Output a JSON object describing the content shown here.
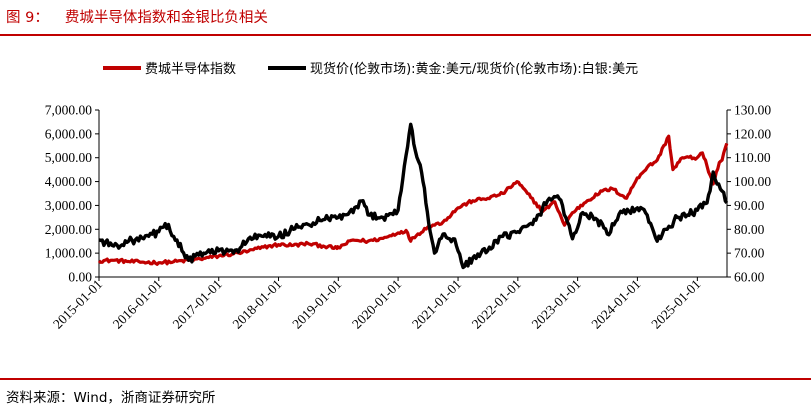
{
  "figure": {
    "label": "图 9：",
    "title": "费城半导体指数和金银比负相关",
    "source": "资料来源：Wind，浙商证券研究所"
  },
  "colors": {
    "accent_red": "#c00000",
    "series_red": "#c00000",
    "series_black": "#000000"
  },
  "chart_data": {
    "type": "line",
    "title": "费城半导体指数和金银比负相关",
    "legend_position": "top",
    "grid": false,
    "x_tick_labels": [
      "2015-01-01",
      "2016-01-01",
      "2017-01-01",
      "2018-01-01",
      "2019-01-01",
      "2020-01-01",
      "2021-01-01",
      "2022-01-01",
      "2023-01-01",
      "2024-01-01",
      "2025-01-01"
    ],
    "x_range": [
      "2015-01-01",
      "2025-07-01"
    ],
    "y_left": {
      "range": [
        0,
        7000
      ],
      "ticks": [
        "0.00",
        "1,000.00",
        "2,000.00",
        "3,000.00",
        "4,000.00",
        "5,000.00",
        "6,000.00",
        "7,000.00"
      ]
    },
    "y_right": {
      "range": [
        60,
        130
      ],
      "ticks": [
        "60.00",
        "70.00",
        "80.00",
        "90.00",
        "100.00",
        "110.00",
        "120.00",
        "130.00"
      ]
    },
    "series": [
      {
        "name": "费城半导体指数",
        "axis": "left",
        "color": "#c00000",
        "points": [
          [
            "2015-01-01",
            680
          ],
          [
            "2015-04-01",
            700
          ],
          [
            "2015-07-01",
            650
          ],
          [
            "2015-10-01",
            620
          ],
          [
            "2016-01-01",
            600
          ],
          [
            "2016-04-01",
            640
          ],
          [
            "2016-07-01",
            700
          ],
          [
            "2016-10-01",
            780
          ],
          [
            "2017-01-01",
            880
          ],
          [
            "2017-04-01",
            970
          ],
          [
            "2017-07-01",
            1080
          ],
          [
            "2017-10-01",
            1250
          ],
          [
            "2018-01-01",
            1360
          ],
          [
            "2018-04-01",
            1330
          ],
          [
            "2018-07-01",
            1400
          ],
          [
            "2018-10-01",
            1300
          ],
          [
            "2018-12-24",
            1200
          ],
          [
            "2019-01-01",
            1230
          ],
          [
            "2019-04-01",
            1550
          ],
          [
            "2019-07-01",
            1500
          ],
          [
            "2019-10-01",
            1620
          ],
          [
            "2020-01-01",
            1850
          ],
          [
            "2020-02-19",
            1950
          ],
          [
            "2020-03-18",
            1500
          ],
          [
            "2020-04-01",
            1650
          ],
          [
            "2020-07-01",
            2100
          ],
          [
            "2020-10-01",
            2300
          ],
          [
            "2021-01-01",
            2900
          ],
          [
            "2021-04-01",
            3200
          ],
          [
            "2021-07-01",
            3300
          ],
          [
            "2021-10-01",
            3500
          ],
          [
            "2021-12-27",
            4000
          ],
          [
            "2022-03-01",
            3500
          ],
          [
            "2022-06-01",
            2750
          ],
          [
            "2022-08-15",
            3150
          ],
          [
            "2022-10-13",
            2170
          ],
          [
            "2022-12-01",
            2700
          ],
          [
            "2023-03-01",
            3200
          ],
          [
            "2023-06-01",
            3600
          ],
          [
            "2023-08-01",
            3700
          ],
          [
            "2023-10-27",
            3300
          ],
          [
            "2023-12-31",
            4150
          ],
          [
            "2024-03-01",
            4600
          ],
          [
            "2024-05-01",
            4900
          ],
          [
            "2024-07-10",
            5900
          ],
          [
            "2024-08-05",
            4500
          ],
          [
            "2024-10-01",
            5000
          ],
          [
            "2024-12-31",
            5000
          ],
          [
            "2025-02-01",
            5200
          ],
          [
            "2025-04-08",
            3900
          ],
          [
            "2025-05-15",
            4800
          ],
          [
            "2025-06-01",
            4900
          ],
          [
            "2025-06-30",
            5600
          ]
        ]
      },
      {
        "name": "现货价(伦敦市场):黄金:美元/现货价(伦敦市场):白银:美元",
        "axis": "right",
        "color": "#000000",
        "points": [
          [
            "2015-01-01",
            75.6
          ],
          [
            "2015-04-01",
            73
          ],
          [
            "2015-07-01",
            75
          ],
          [
            "2015-10-01",
            76
          ],
          [
            "2016-01-01",
            79
          ],
          [
            "2016-02-29",
            82
          ],
          [
            "2016-04-01",
            77
          ],
          [
            "2016-07-01",
            67
          ],
          [
            "2016-10-01",
            70
          ],
          [
            "2017-01-01",
            71
          ],
          [
            "2017-04-01",
            70
          ],
          [
            "2017-07-01",
            76
          ],
          [
            "2017-10-01",
            77
          ],
          [
            "2018-01-01",
            77
          ],
          [
            "2018-04-01",
            80
          ],
          [
            "2018-07-01",
            82
          ],
          [
            "2018-10-01",
            84
          ],
          [
            "2019-01-01",
            85
          ],
          [
            "2019-04-01",
            87
          ],
          [
            "2019-06-01",
            92
          ],
          [
            "2019-07-01",
            86
          ],
          [
            "2019-10-01",
            85
          ],
          [
            "2020-01-01",
            88
          ],
          [
            "2020-03-18",
            124
          ],
          [
            "2020-04-15",
            113
          ],
          [
            "2020-05-15",
            107
          ],
          [
            "2020-06-01",
            100
          ],
          [
            "2020-07-15",
            79
          ],
          [
            "2020-08-10",
            70
          ],
          [
            "2020-10-01",
            78
          ],
          [
            "2020-12-01",
            76
          ],
          [
            "2021-01-01",
            71
          ],
          [
            "2021-02-01",
            64
          ],
          [
            "2021-04-01",
            68
          ],
          [
            "2021-07-01",
            71
          ],
          [
            "2021-10-01",
            77
          ],
          [
            "2022-01-01",
            79
          ],
          [
            "2022-04-01",
            82
          ],
          [
            "2022-07-01",
            92
          ],
          [
            "2022-09-01",
            94
          ],
          [
            "2022-10-01",
            90
          ],
          [
            "2022-12-01",
            76
          ],
          [
            "2023-02-01",
            87
          ],
          [
            "2023-05-01",
            84
          ],
          [
            "2023-07-01",
            78
          ],
          [
            "2023-10-01",
            87
          ],
          [
            "2024-01-01",
            89
          ],
          [
            "2024-03-01",
            86
          ],
          [
            "2024-05-01",
            75
          ],
          [
            "2024-07-01",
            80
          ],
          [
            "2024-09-01",
            85
          ],
          [
            "2024-11-01",
            86
          ],
          [
            "2025-01-01",
            88
          ],
          [
            "2025-03-01",
            91
          ],
          [
            "2025-04-08",
            104
          ],
          [
            "2025-05-01",
            99
          ],
          [
            "2025-06-01",
            96
          ],
          [
            "2025-06-30",
            91
          ]
        ]
      }
    ]
  }
}
